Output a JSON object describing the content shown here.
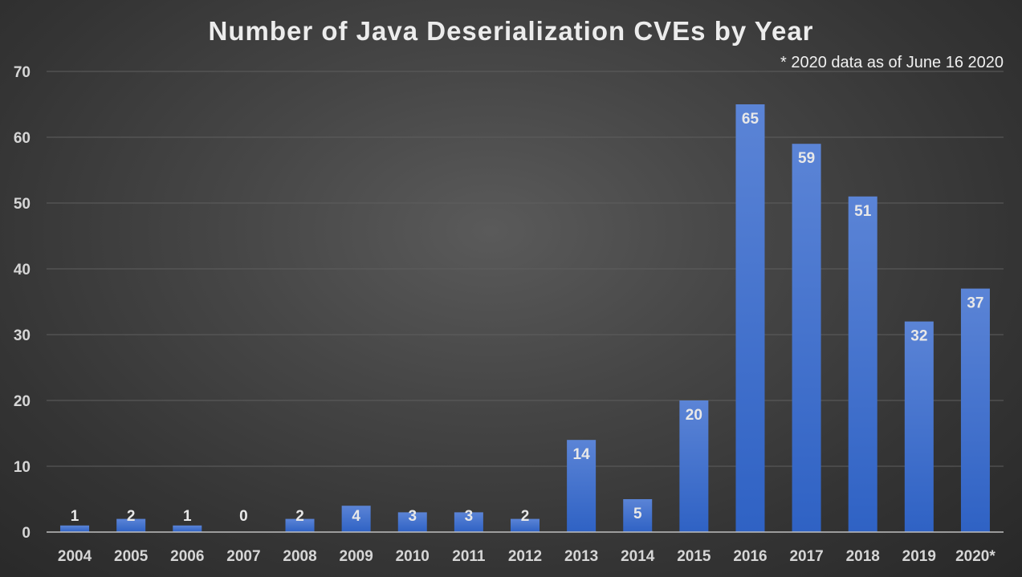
{
  "title": "Number of Java Deserialization CVEs by Year",
  "note": "* 2020 data as of June 16 2020",
  "colors": {
    "bar_top": "#5b84d6",
    "bar_bottom": "#2f62c4",
    "grid": "#5e5e5e",
    "axis": "#bfbfbf"
  },
  "chart_data": {
    "type": "bar",
    "categories": [
      "2004",
      "2005",
      "2006",
      "2007",
      "2008",
      "2009",
      "2010",
      "2011",
      "2012",
      "2013",
      "2014",
      "2015",
      "2016",
      "2017",
      "2018",
      "2019",
      "2020*"
    ],
    "values": [
      1,
      2,
      1,
      0,
      2,
      4,
      3,
      3,
      2,
      14,
      5,
      20,
      65,
      59,
      51,
      32,
      37
    ],
    "title": "Number of Java Deserialization CVEs by Year",
    "annotation": "* 2020 data as of June 16 2020",
    "ylim": [
      0,
      70
    ],
    "yticks": [
      0,
      10,
      20,
      30,
      40,
      50,
      60,
      70
    ],
    "grid": true,
    "legend": "none"
  }
}
